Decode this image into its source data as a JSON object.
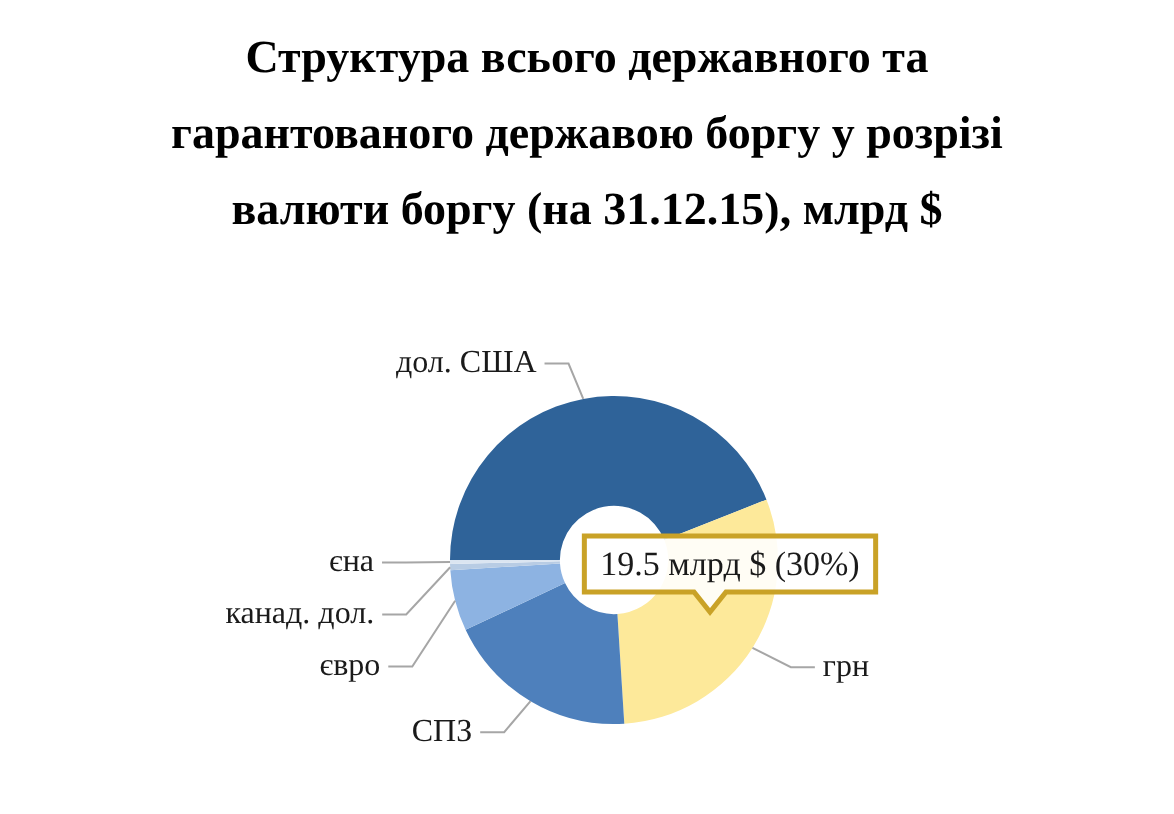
{
  "chart_data": {
    "type": "donut",
    "title": "Структура всього державного та гарантованого державою боргу у розрізі валюти боргу (на 31.12.15), млрд $",
    "categories": [
      "дол. США",
      "грн",
      "СПЗ",
      "євро",
      "канад. дол.",
      "єна"
    ],
    "values": [
      44,
      30,
      19,
      6,
      0.6,
      0.4
    ],
    "colors": [
      "#2f6399",
      "#fde99a",
      "#4e80bc",
      "#8db3e2",
      "#b8cce4",
      "#dbe5f1"
    ],
    "annotations": [
      "19.5 млрд $ (30%)"
    ],
    "legend": false
  }
}
